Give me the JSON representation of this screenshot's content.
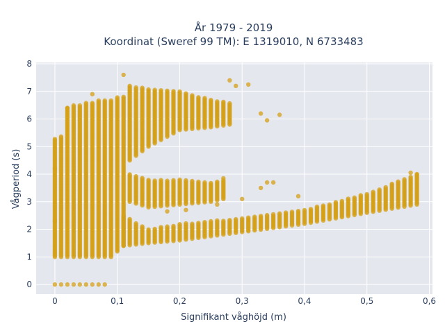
{
  "chart_data": {
    "type": "scatter",
    "title_line1": "År 1979 - 2019",
    "title_line2": "Koordinat (Sweref 99 TM): E 1319010, N 6733483",
    "xlabel": "Signifikant våghöjd (m)",
    "ylabel": "Vågperiod (s)",
    "xlim": [
      -0.03,
      0.605
    ],
    "ylim": [
      -0.35,
      8.05
    ],
    "xticks": [
      0,
      0.1,
      0.2,
      0.3,
      0.4,
      0.5,
      0.6
    ],
    "xtick_labels": [
      "0",
      "0,1",
      "0,2",
      "0,3",
      "0,4",
      "0,5",
      "0,6"
    ],
    "yticks": [
      0,
      1,
      2,
      3,
      4,
      5,
      6,
      7,
      8
    ],
    "ytick_labels": [
      "0",
      "1",
      "2",
      "3",
      "4",
      "5",
      "6",
      "7",
      "8"
    ],
    "grid": true,
    "marker_color": "#d4a017",
    "plot_bg": "#e5e7ef",
    "series": [
      {
        "columns": [
          {
            "x": 0.0,
            "y_min": 1.0,
            "y_max": 5.3
          },
          {
            "x": 0.01,
            "y_min": 1.0,
            "y_max": 5.4
          },
          {
            "x": 0.02,
            "y_min": 1.0,
            "y_max": 6.4
          },
          {
            "x": 0.03,
            "y_min": 1.0,
            "y_max": 6.5
          },
          {
            "x": 0.04,
            "y_min": 1.0,
            "y_max": 6.5
          },
          {
            "x": 0.05,
            "y_min": 1.0,
            "y_max": 6.6
          },
          {
            "x": 0.06,
            "y_min": 1.0,
            "y_max": 6.6
          },
          {
            "x": 0.07,
            "y_min": 1.0,
            "y_max": 6.7
          },
          {
            "x": 0.08,
            "y_min": 1.0,
            "y_max": 6.7
          },
          {
            "x": 0.09,
            "y_min": 1.0,
            "y_max": 6.7
          },
          {
            "x": 0.1,
            "y_min": 1.2,
            "y_max": 6.8
          },
          {
            "x": 0.11,
            "y_min": 1.4,
            "y_max": 6.8
          }
        ],
        "zero_row": {
          "y": 0,
          "x_from": 0.0,
          "x_to": 0.08
        },
        "lower_band": [
          {
            "x": 0.11,
            "y_min": 1.4,
            "y_max": 2.5
          },
          {
            "x": 0.15,
            "y_min": 1.5,
            "y_max": 2.0
          },
          {
            "x": 0.2,
            "y_min": 1.6,
            "y_max": 2.2
          },
          {
            "x": 0.3,
            "y_min": 1.9,
            "y_max": 2.4
          },
          {
            "x": 0.4,
            "y_min": 2.2,
            "y_max": 2.7
          },
          {
            "x": 0.5,
            "y_min": 2.6,
            "y_max": 3.3
          },
          {
            "x": 0.58,
            "y_min": 2.9,
            "y_max": 4.0
          }
        ],
        "middle_band": [
          {
            "x": 0.12,
            "y_min": 3.0,
            "y_max": 4.0
          },
          {
            "x": 0.15,
            "y_min": 2.8,
            "y_max": 3.8
          },
          {
            "x": 0.2,
            "y_min": 2.9,
            "y_max": 3.8
          },
          {
            "x": 0.25,
            "y_min": 3.0,
            "y_max": 3.7
          },
          {
            "x": 0.27,
            "y_min": 3.1,
            "y_max": 3.8
          }
        ],
        "upper_band": [
          {
            "x": 0.12,
            "y_min": 4.5,
            "y_max": 7.2
          },
          {
            "x": 0.15,
            "y_min": 5.0,
            "y_max": 7.1
          },
          {
            "x": 0.2,
            "y_min": 5.6,
            "y_max": 7.0
          },
          {
            "x": 0.25,
            "y_min": 5.7,
            "y_max": 6.7
          },
          {
            "x": 0.28,
            "y_min": 5.8,
            "y_max": 6.6
          }
        ],
        "outliers": [
          {
            "x": 0.11,
            "y": 7.6
          },
          {
            "x": 0.28,
            "y": 7.4
          },
          {
            "x": 0.29,
            "y": 7.2
          },
          {
            "x": 0.31,
            "y": 7.25
          },
          {
            "x": 0.33,
            "y": 6.2
          },
          {
            "x": 0.34,
            "y": 5.95
          },
          {
            "x": 0.36,
            "y": 6.15
          },
          {
            "x": 0.33,
            "y": 3.5
          },
          {
            "x": 0.34,
            "y": 3.7
          },
          {
            "x": 0.35,
            "y": 3.7
          },
          {
            "x": 0.39,
            "y": 3.2
          },
          {
            "x": 0.27,
            "y": 3.85
          },
          {
            "x": 0.3,
            "y": 3.1
          },
          {
            "x": 0.21,
            "y": 2.7
          },
          {
            "x": 0.18,
            "y": 2.65
          },
          {
            "x": 0.26,
            "y": 2.9
          },
          {
            "x": 0.0,
            "y": 2.3
          },
          {
            "x": 0.0,
            "y": 4.2
          },
          {
            "x": 0.06,
            "y": 6.9
          },
          {
            "x": 0.02,
            "y": 6.4
          },
          {
            "x": 0.57,
            "y": 4.05
          },
          {
            "x": 0.58,
            "y": 4.0
          }
        ]
      }
    ]
  }
}
